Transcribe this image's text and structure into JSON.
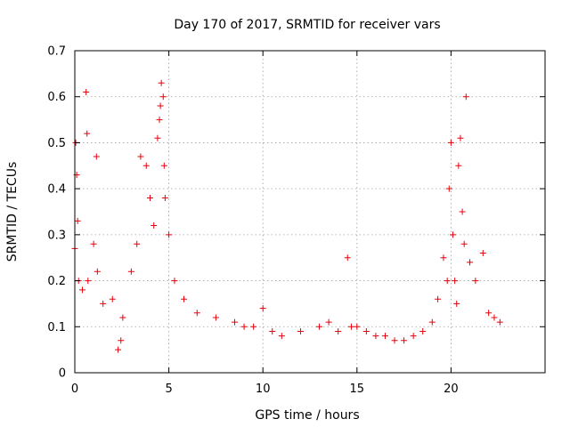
{
  "chart_data": {
    "type": "scatter",
    "title": "Day 170 of 2017, SRMTID for receiver vars",
    "xlabel": "GPS time / hours",
    "ylabel": "SRMTID / TECUs",
    "xlim": [
      0,
      25
    ],
    "ylim": [
      0,
      0.7
    ],
    "xticks": [
      0,
      5,
      10,
      15,
      20
    ],
    "xtick_labels": [
      "0",
      "5",
      "10",
      "15",
      "20"
    ],
    "yticks": [
      0,
      0.1,
      0.2,
      0.3,
      0.4,
      0.5,
      0.6,
      0.7
    ],
    "ytick_labels": [
      "0",
      "0.1",
      "0.2",
      "0.3",
      "0.4",
      "0.5",
      "0.6",
      "0.7"
    ],
    "grid": true,
    "marker": "plus",
    "color": "#e8000b",
    "data_range_hours": [
      0,
      22.7
    ],
    "series": [
      {
        "name": "SRMTID",
        "x": [
          0.0,
          0.05,
          0.1,
          0.15,
          0.2,
          0.4,
          0.6,
          0.65,
          0.7,
          1.0,
          1.15,
          1.2,
          1.5,
          2.0,
          2.3,
          2.45,
          2.55,
          3.0,
          3.3,
          3.5,
          3.8,
          4.0,
          4.2,
          4.4,
          4.5,
          4.55,
          4.6,
          4.7,
          4.75,
          4.8,
          5.0,
          5.3,
          5.8,
          6.5,
          7.5,
          8.5,
          9.0,
          9.5,
          10.0,
          10.5,
          11.0,
          12.0,
          13.0,
          13.5,
          14.0,
          14.5,
          14.7,
          15.0,
          15.5,
          16.0,
          16.5,
          17.0,
          17.5,
          18.0,
          18.5,
          19.0,
          19.3,
          19.6,
          19.8,
          19.9,
          20.0,
          20.1,
          20.2,
          20.3,
          20.4,
          20.5,
          20.6,
          20.7,
          20.8,
          21.0,
          21.3,
          21.7,
          22.0,
          22.3,
          22.6
        ],
        "y": [
          0.27,
          0.5,
          0.43,
          0.33,
          0.2,
          0.18,
          0.61,
          0.52,
          0.2,
          0.28,
          0.47,
          0.22,
          0.15,
          0.16,
          0.05,
          0.07,
          0.12,
          0.22,
          0.28,
          0.47,
          0.45,
          0.38,
          0.32,
          0.51,
          0.55,
          0.58,
          0.63,
          0.6,
          0.45,
          0.38,
          0.3,
          0.2,
          0.16,
          0.13,
          0.12,
          0.11,
          0.1,
          0.1,
          0.14,
          0.09,
          0.08,
          0.09,
          0.1,
          0.11,
          0.09,
          0.25,
          0.1,
          0.1,
          0.09,
          0.08,
          0.08,
          0.07,
          0.07,
          0.08,
          0.09,
          0.11,
          0.16,
          0.25,
          0.2,
          0.4,
          0.5,
          0.3,
          0.2,
          0.15,
          0.45,
          0.51,
          0.35,
          0.28,
          0.6,
          0.24,
          0.2,
          0.26,
          0.13,
          0.12,
          0.11
        ]
      }
    ]
  }
}
